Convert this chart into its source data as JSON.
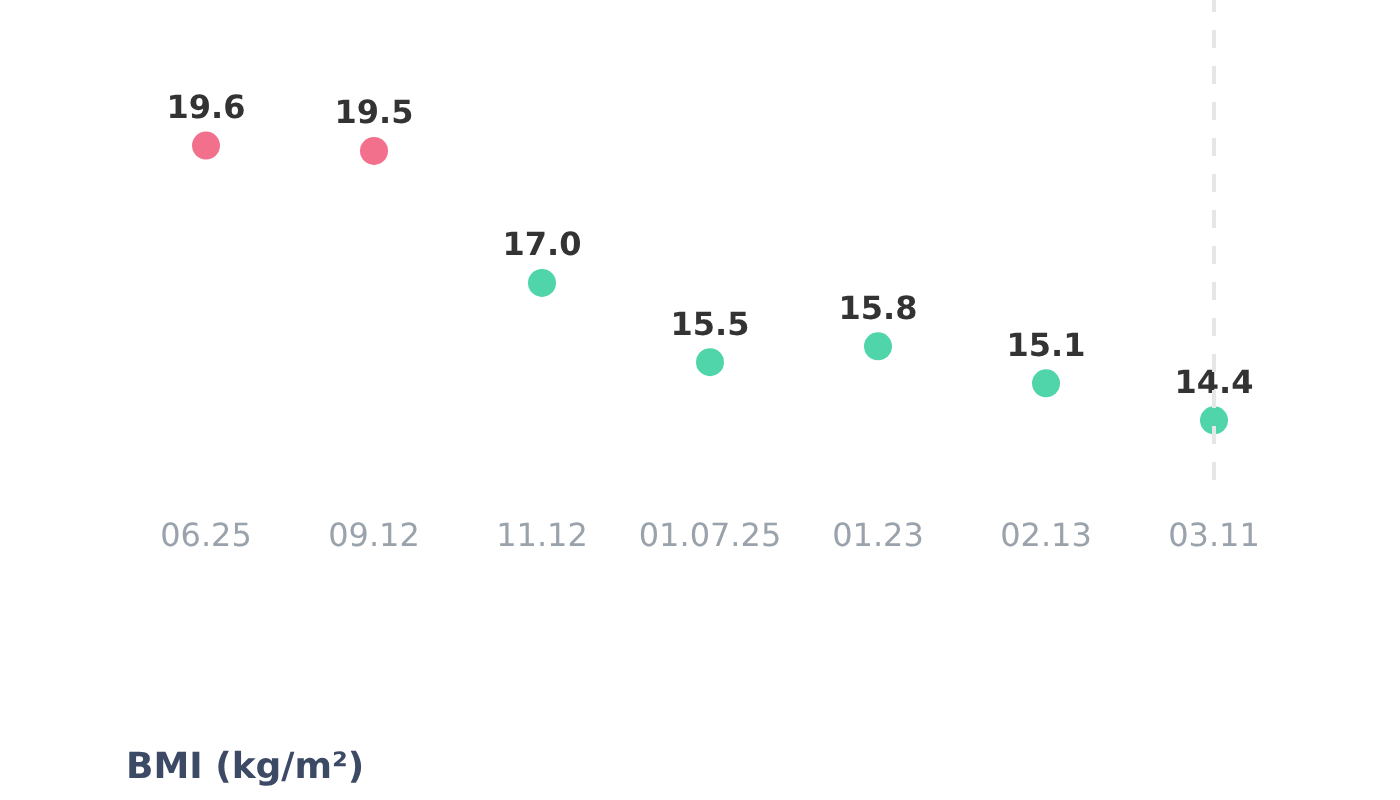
{
  "chart_data": {
    "type": "scatter",
    "categories": [
      "06.25",
      "09.12",
      "11.12",
      "01.07.25",
      "01.23",
      "02.13",
      "03.11"
    ],
    "values": [
      19.6,
      19.5,
      17.0,
      15.5,
      15.8,
      15.1,
      14.4
    ],
    "colors": [
      "#f2708c",
      "#f2708c",
      "#4fd5a9",
      "#4fd5a9",
      "#4fd5a9",
      "#4fd5a9",
      "#4fd5a9"
    ],
    "value_labels": [
      "19.6",
      "19.5",
      "17.0",
      "15.5",
      "15.8",
      "15.1",
      "14.4"
    ],
    "marker": "circle",
    "grid": false,
    "ref_lines": [
      {
        "axis": "x",
        "value": "03.11",
        "color": "#e4e6e8",
        "line_style": "dashed"
      }
    ],
    "annotations": [
      "BMI (kg/m²)"
    ]
  }
}
